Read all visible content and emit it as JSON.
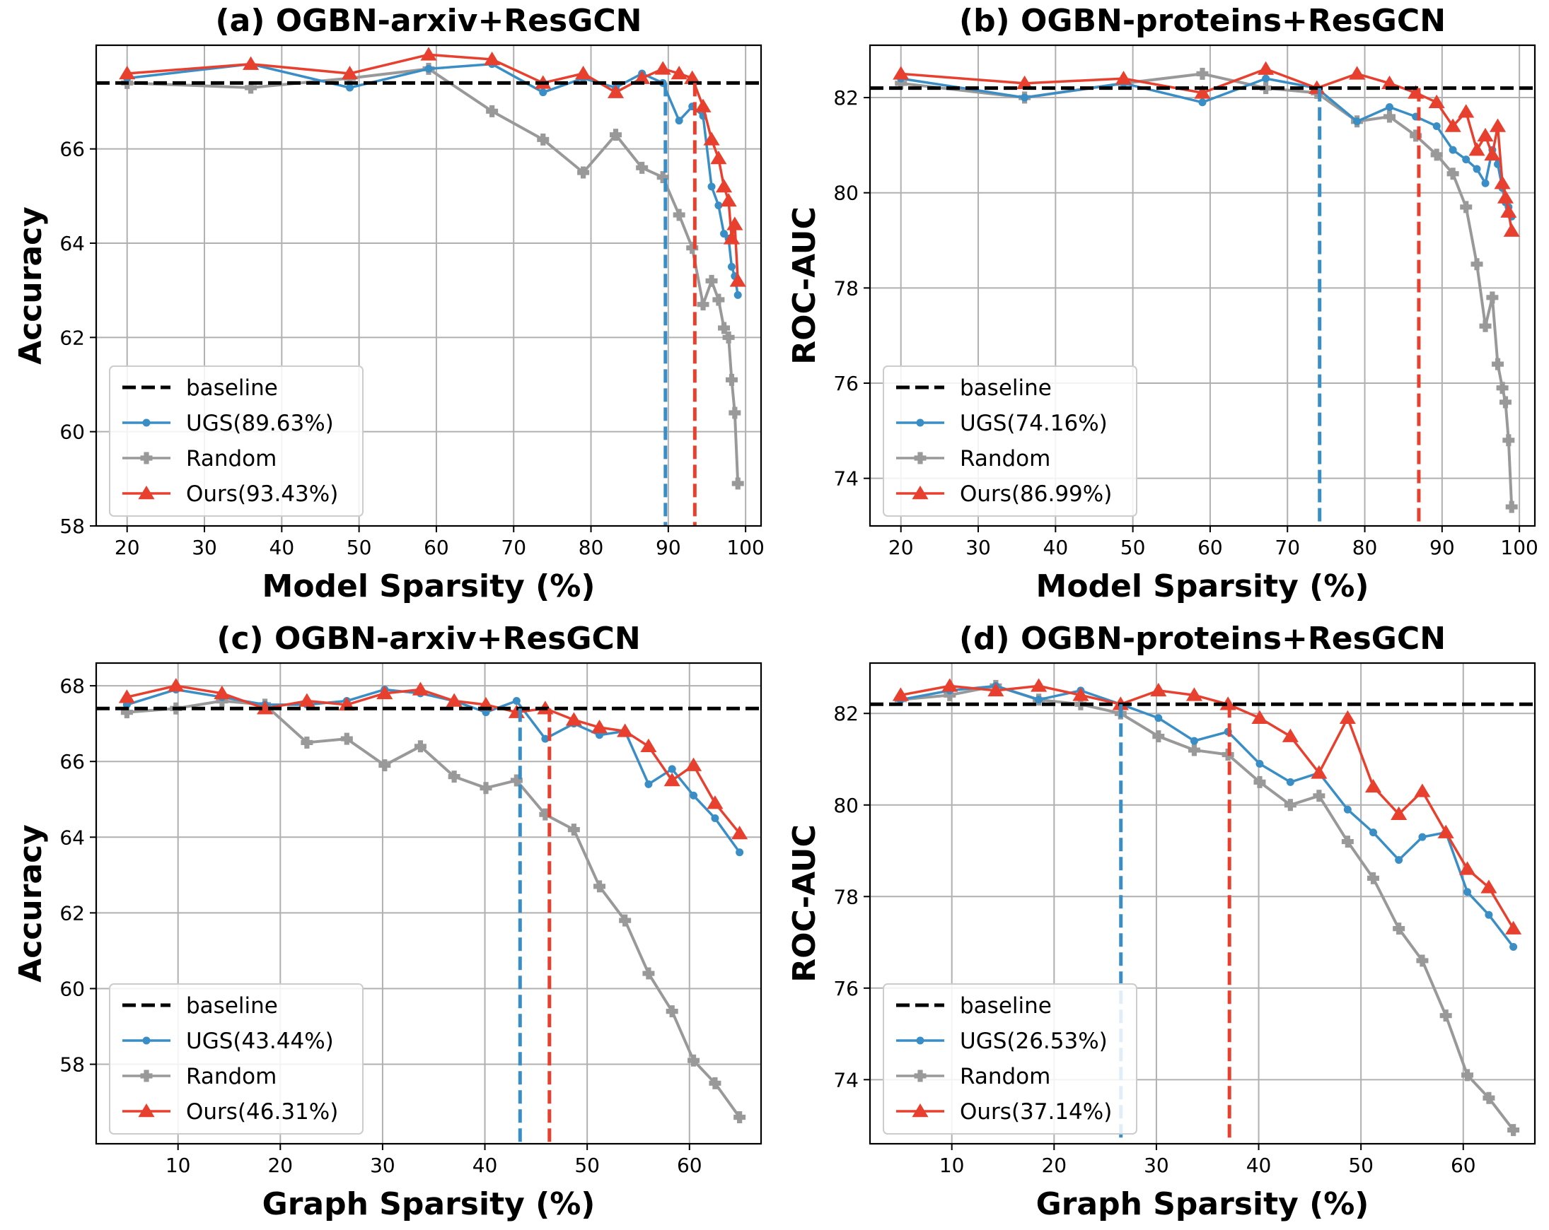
{
  "colors": {
    "ugs": "#3a8ec6",
    "random": "#999999",
    "ours": "#e8402f",
    "baseline": "#000000",
    "grid": "#b0b0b0"
  },
  "chart_data": [
    {
      "type": "line",
      "title": "(a) OGBN-arxiv+ResGCN",
      "xlabel": "Model Sparsity (%)",
      "ylabel": "Accuracy",
      "xlim": [
        16,
        102
      ],
      "ylim": [
        58,
        68.2
      ],
      "xticks": [
        20,
        30,
        40,
        50,
        60,
        70,
        80,
        90,
        100
      ],
      "yticks": [
        58,
        60,
        62,
        64,
        66
      ],
      "grid": true,
      "legend_position": "lower-left",
      "baseline": 67.4,
      "baseline_label": "baseline",
      "series": [
        {
          "name": "UGS(89.63%)",
          "key": "ugs",
          "marker": "dot",
          "vline": 89.63,
          "x": [
            20,
            36,
            48.8,
            59,
            67.2,
            73.8,
            79,
            83.2,
            86.6,
            89.3,
            91.4,
            93.1,
            94.5,
            95.6,
            96.5,
            97.2,
            97.8,
            98.2,
            98.6,
            99
          ],
          "y": [
            67.5,
            67.8,
            67.3,
            67.7,
            67.8,
            67.2,
            67.5,
            67.3,
            67.6,
            67.4,
            66.6,
            66.9,
            66.7,
            65.2,
            64.8,
            64.2,
            64.1,
            63.5,
            63.3,
            62.9
          ]
        },
        {
          "name": "Random",
          "key": "random",
          "marker": "plus",
          "x": [
            20,
            36,
            48.8,
            59,
            67.2,
            73.8,
            79,
            83.2,
            86.6,
            89.3,
            91.4,
            93.1,
            94.5,
            95.6,
            96.5,
            97.2,
            97.8,
            98.2,
            98.6,
            99
          ],
          "y": [
            67.4,
            67.3,
            67.5,
            67.7,
            66.8,
            66.2,
            65.5,
            66.3,
            65.6,
            65.4,
            64.6,
            63.9,
            62.7,
            63.2,
            62.8,
            62.2,
            62.0,
            61.1,
            60.4,
            58.9
          ]
        },
        {
          "name": "Ours(93.43%)",
          "key": "ours",
          "marker": "triangle",
          "vline": 93.43,
          "x": [
            20,
            36,
            48.8,
            59,
            67.2,
            73.8,
            79,
            83.2,
            86.6,
            89.3,
            91.4,
            93.1,
            94.5,
            95.6,
            96.5,
            97.2,
            97.8,
            98.2,
            98.6,
            99
          ],
          "y": [
            67.6,
            67.8,
            67.6,
            68.0,
            67.9,
            67.4,
            67.6,
            67.2,
            67.5,
            67.7,
            67.6,
            67.5,
            66.9,
            66.2,
            65.8,
            65.2,
            64.9,
            64.1,
            64.4,
            63.2
          ]
        }
      ]
    },
    {
      "type": "line",
      "title": "(b) OGBN-proteins+ResGCN",
      "xlabel": "Model Sparsity (%)",
      "ylabel": "ROC-AUC",
      "xlim": [
        16,
        102
      ],
      "ylim": [
        73,
        83.1
      ],
      "xticks": [
        20,
        30,
        40,
        50,
        60,
        70,
        80,
        90,
        100
      ],
      "yticks": [
        74,
        76,
        78,
        80,
        82
      ],
      "grid": true,
      "legend_position": "lower-left",
      "baseline": 82.2,
      "baseline_label": "baseline",
      "series": [
        {
          "name": "UGS(74.16%)",
          "key": "ugs",
          "marker": "dot",
          "vline": 74.16,
          "x": [
            20,
            36,
            48.8,
            59,
            67.2,
            73.8,
            79,
            83.2,
            86.6,
            89.3,
            91.4,
            93.1,
            94.5,
            95.6,
            96.5,
            97.2,
            97.8,
            98.2,
            98.6,
            99
          ],
          "y": [
            82.4,
            82.0,
            82.3,
            81.9,
            82.4,
            82.2,
            81.5,
            81.8,
            81.6,
            81.4,
            80.9,
            80.7,
            80.5,
            80.2,
            80.9,
            80.6,
            80.1,
            79.8,
            79.7,
            79.5
          ]
        },
        {
          "name": "Random",
          "key": "random",
          "marker": "plus",
          "x": [
            20,
            36,
            48.8,
            59,
            67.2,
            73.8,
            79,
            83.2,
            86.6,
            89.3,
            91.4,
            93.1,
            94.5,
            95.6,
            96.5,
            97.2,
            97.8,
            98.2,
            98.6,
            99
          ],
          "y": [
            82.3,
            82.0,
            82.3,
            82.5,
            82.2,
            82.1,
            81.5,
            81.6,
            81.2,
            80.8,
            80.4,
            79.7,
            78.5,
            77.2,
            77.8,
            76.4,
            75.9,
            75.6,
            74.8,
            73.4
          ]
        },
        {
          "name": "Ours(86.99%)",
          "key": "ours",
          "marker": "triangle",
          "vline": 86.99,
          "x": [
            20,
            36,
            48.8,
            59,
            67.2,
            73.8,
            79,
            83.2,
            86.6,
            89.3,
            91.4,
            93.1,
            94.5,
            95.6,
            96.5,
            97.2,
            97.8,
            98.2,
            98.6,
            99
          ],
          "y": [
            82.5,
            82.3,
            82.4,
            82.1,
            82.6,
            82.2,
            82.5,
            82.3,
            82.1,
            81.9,
            81.4,
            81.7,
            80.9,
            81.2,
            80.8,
            81.4,
            80.2,
            79.9,
            79.6,
            79.2
          ]
        }
      ]
    },
    {
      "type": "line",
      "title": "(c) OGBN-arxiv+ResGCN",
      "xlabel": "Graph Sparsity (%)",
      "ylabel": "Accuracy",
      "xlim": [
        2,
        67
      ],
      "ylim": [
        55.9,
        68.6
      ],
      "xticks": [
        10,
        20,
        30,
        40,
        50,
        60
      ],
      "yticks": [
        58,
        60,
        62,
        64,
        66,
        68
      ],
      "grid": true,
      "legend_position": "lower-left",
      "baseline": 67.4,
      "baseline_label": "baseline",
      "series": [
        {
          "name": "UGS(43.44%)",
          "key": "ugs",
          "marker": "dot",
          "vline": 43.44,
          "x": [
            5,
            9.8,
            14.3,
            18.5,
            22.6,
            26.5,
            30.2,
            33.7,
            37,
            40.1,
            43.1,
            45.9,
            48.7,
            51.2,
            53.7,
            56,
            58.3,
            60.4,
            62.5,
            64.9
          ],
          "y": [
            67.5,
            67.9,
            67.7,
            67.5,
            67.5,
            67.6,
            67.9,
            67.8,
            67.6,
            67.3,
            67.6,
            66.6,
            67.0,
            66.7,
            66.8,
            65.4,
            65.8,
            65.1,
            64.5,
            63.6
          ]
        },
        {
          "name": "Random",
          "key": "random",
          "marker": "plus",
          "x": [
            5,
            9.8,
            14.3,
            18.5,
            22.6,
            26.5,
            30.2,
            33.7,
            37,
            40.1,
            43.1,
            45.9,
            48.7,
            51.2,
            53.7,
            56,
            58.3,
            60.4,
            62.5,
            64.9
          ],
          "y": [
            67.3,
            67.4,
            67.6,
            67.5,
            66.5,
            66.6,
            65.9,
            66.4,
            65.6,
            65.3,
            65.5,
            64.6,
            64.2,
            62.7,
            61.8,
            60.4,
            59.4,
            58.1,
            57.5,
            56.6
          ]
        },
        {
          "name": "Ours(46.31%)",
          "key": "ours",
          "marker": "triangle",
          "vline": 46.31,
          "x": [
            5,
            9.8,
            14.3,
            18.5,
            22.6,
            26.5,
            30.2,
            33.7,
            37,
            40.1,
            43.1,
            45.9,
            48.7,
            51.2,
            53.7,
            56,
            58.3,
            60.4,
            62.5,
            64.9
          ],
          "y": [
            67.7,
            68.0,
            67.8,
            67.4,
            67.6,
            67.5,
            67.8,
            67.9,
            67.6,
            67.5,
            67.3,
            67.4,
            67.1,
            66.9,
            66.8,
            66.4,
            65.5,
            65.9,
            64.9,
            64.1
          ]
        }
      ]
    },
    {
      "type": "line",
      "title": "(d) OGBN-proteins+ResGCN",
      "xlabel": "Graph Sparsity (%)",
      "ylabel": "ROC-AUC",
      "xlim": [
        2,
        67
      ],
      "ylim": [
        72.6,
        83.1
      ],
      "xticks": [
        10,
        20,
        30,
        40,
        50,
        60
      ],
      "yticks": [
        74,
        76,
        78,
        80,
        82
      ],
      "grid": true,
      "legend_position": "lower-left",
      "baseline": 82.2,
      "baseline_label": "baseline",
      "series": [
        {
          "name": "UGS(26.53%)",
          "key": "ugs",
          "marker": "dot",
          "vline": 26.53,
          "x": [
            5,
            9.8,
            14.3,
            18.5,
            22.6,
            26.5,
            30.2,
            33.7,
            37,
            40.1,
            43.1,
            45.9,
            48.7,
            51.2,
            53.7,
            56,
            58.3,
            60.4,
            62.5,
            64.9
          ],
          "y": [
            82.3,
            82.5,
            82.6,
            82.3,
            82.5,
            82.2,
            81.9,
            81.4,
            81.6,
            80.9,
            80.5,
            80.7,
            79.9,
            79.4,
            78.8,
            79.3,
            79.4,
            78.1,
            77.6,
            76.9
          ]
        },
        {
          "name": "Random",
          "key": "random",
          "marker": "plus",
          "x": [
            5,
            9.8,
            14.3,
            18.5,
            22.6,
            26.5,
            30.2,
            33.7,
            37,
            40.1,
            43.1,
            45.9,
            48.7,
            51.2,
            53.7,
            56,
            58.3,
            60.4,
            62.5,
            64.9
          ],
          "y": [
            82.3,
            82.4,
            82.6,
            82.3,
            82.2,
            82.0,
            81.5,
            81.2,
            81.1,
            80.5,
            80.0,
            80.2,
            79.2,
            78.4,
            77.3,
            76.6,
            75.4,
            74.1,
            73.6,
            72.9
          ]
        },
        {
          "name": "Ours(37.14%)",
          "key": "ours",
          "marker": "triangle",
          "vline": 37.14,
          "x": [
            5,
            9.8,
            14.3,
            18.5,
            22.6,
            26.5,
            30.2,
            33.7,
            37,
            40.1,
            43.1,
            45.9,
            48.7,
            51.2,
            53.7,
            56,
            58.3,
            60.4,
            62.5,
            64.9
          ],
          "y": [
            82.4,
            82.6,
            82.5,
            82.6,
            82.4,
            82.2,
            82.5,
            82.4,
            82.2,
            81.9,
            81.5,
            80.7,
            81.9,
            80.4,
            79.8,
            80.3,
            79.4,
            78.6,
            78.2,
            77.3
          ]
        }
      ]
    }
  ]
}
